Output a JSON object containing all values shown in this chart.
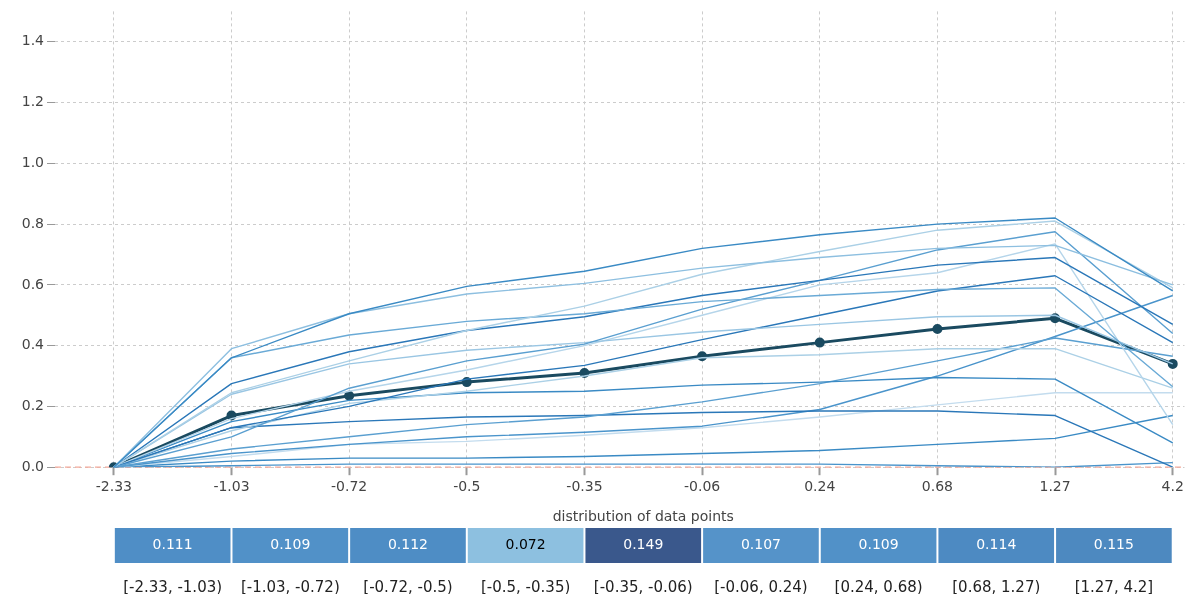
{
  "chart_data": [
    {
      "type": "line",
      "categories": [
        "-2.33",
        "-1.03",
        "-0.72",
        "-0.5",
        "-0.35",
        "-0.06",
        "0.24",
        "0.68",
        "1.27",
        "4.2"
      ],
      "ylim": [
        0,
        1.5
      ],
      "yticks": [
        {
          "value": 0,
          "label": "0.0"
        },
        0.2,
        0.4,
        0.6,
        0.8,
        {
          "value": 1,
          "label": "1.0"
        },
        1.2,
        1.4
      ],
      "grid": true,
      "legend": false,
      "ref_lines": [
        {
          "axis": "y",
          "value": 0,
          "color": "#f4a99a",
          "line_style": "dashed"
        }
      ],
      "series": [
        {
          "color": "#3a8ac4",
          "values": [
            0,
            0.36,
            0.505,
            0.595,
            0.645,
            0.72,
            0.765,
            0.8,
            0.82,
            0.58
          ]
        },
        {
          "color": "#8dbfe0",
          "values": [
            0,
            0.39,
            0.505,
            0.57,
            0.605,
            0.655,
            0.69,
            0.72,
            0.73,
            0.6
          ]
        },
        {
          "color": "#abd0e6",
          "values": [
            0,
            0.245,
            0.35,
            0.45,
            0.53,
            0.635,
            0.71,
            0.78,
            0.81,
            0.59
          ]
        },
        {
          "color": "#6aaad6",
          "values": [
            0,
            0.36,
            0.435,
            0.48,
            0.505,
            0.545,
            0.565,
            0.585,
            0.59,
            0.265
          ]
        },
        {
          "color": "#2a77b8",
          "values": [
            0,
            0.275,
            0.38,
            0.45,
            0.495,
            0.565,
            0.615,
            0.665,
            0.69,
            0.47
          ]
        },
        {
          "color": "#5a9fd0",
          "values": [
            0,
            0.1,
            0.26,
            0.35,
            0.405,
            0.52,
            0.615,
            0.715,
            0.775,
            0.44
          ]
        },
        {
          "color": "#9ac6e3",
          "values": [
            0,
            0.24,
            0.34,
            0.385,
            0.41,
            0.445,
            0.47,
            0.495,
            0.5,
            0.34
          ]
        },
        {
          "color": "#2a77b8",
          "values": [
            0,
            0.13,
            0.2,
            0.29,
            0.335,
            0.42,
            0.5,
            0.58,
            0.63,
            0.41
          ]
        },
        {
          "color": "#b5d5ea",
          "values": [
            0,
            0.16,
            0.25,
            0.32,
            0.4,
            0.5,
            0.6,
            0.64,
            0.735,
            0.14
          ]
        },
        {
          "color": "#abd0e6",
          "values": [
            0,
            0.12,
            0.21,
            0.25,
            0.3,
            0.36,
            0.37,
            0.39,
            0.39,
            0.26
          ]
        },
        {
          "color": "#3a8ac4",
          "values": [
            0,
            0.15,
            0.22,
            0.245,
            0.25,
            0.27,
            0.28,
            0.295,
            0.29,
            0.08
          ]
        },
        {
          "color": "#5a9fd0",
          "values": [
            0,
            0.06,
            0.1,
            0.14,
            0.165,
            0.215,
            0.275,
            0.35,
            0.425,
            0.365
          ]
        },
        {
          "color": "#2a77b8",
          "values": [
            0,
            0.13,
            0.15,
            0.165,
            0.17,
            0.18,
            0.185,
            0.185,
            0.17,
            0
          ]
        },
        {
          "color": "#4a94cb",
          "values": [
            0,
            0.045,
            0.075,
            0.1,
            0.115,
            0.135,
            0.19,
            0.3,
            0.43,
            0.565
          ]
        },
        {
          "color": "#c3dcee",
          "values": [
            0,
            0.035,
            0.075,
            0.085,
            0.105,
            0.13,
            0.165,
            0.205,
            0.245,
            0.245
          ]
        },
        {
          "color": "#3a8ac4",
          "values": [
            0,
            0.02,
            0.03,
            0.03,
            0.035,
            0.045,
            0.055,
            0.075,
            0.095,
            0.17
          ]
        },
        {
          "color": "#4a94cb",
          "values": [
            0,
            0.005,
            0.01,
            0.01,
            0.01,
            0.01,
            0.01,
            0.005,
            0,
            0.015
          ]
        },
        {
          "color": "#1a4a60",
          "marker": "circle",
          "values": [
            0,
            0.17,
            0.235,
            0.28,
            0.31,
            0.365,
            0.41,
            0.455,
            0.49,
            0.34
          ]
        }
      ]
    },
    {
      "type": "other",
      "title": "distribution of data points",
      "categories": [
        "[-2.33, -1.03)",
        "[-1.03, -0.72)",
        "[-0.72, -0.5)",
        "[-0.5, -0.35)",
        "[-0.35, -0.06)",
        "[-0.06, 0.24)",
        "[0.24, 0.68)",
        "[0.68, 1.27)",
        "[1.27, 4.2]"
      ],
      "values": [
        0.111,
        0.109,
        0.112,
        0.072,
        0.149,
        0.107,
        0.109,
        0.114,
        0.115
      ],
      "data_labels": true
    }
  ]
}
